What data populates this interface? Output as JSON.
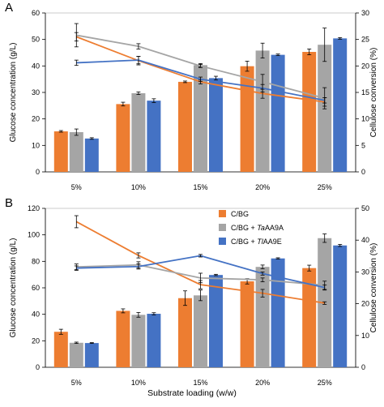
{
  "figure": {
    "x_axis_title": "Substrate loading (w/w)"
  },
  "colors": {
    "cbg": "#ED7D31",
    "taaa9a": "#A5A5A5",
    "tiaa9e": "#4472C4",
    "axis": "#000000",
    "frame": "#bfbfbf"
  },
  "legend": {
    "items": [
      {
        "prefix": "C/BG",
        "italic": "",
        "suffix": "",
        "color_key": "cbg"
      },
      {
        "prefix": "C/BG + ",
        "italic": "Ta",
        "suffix": "AA9A",
        "color_key": "taaa9a"
      },
      {
        "prefix": "C/BG + ",
        "italic": "Tl",
        "suffix": "AA9E",
        "color_key": "tiaa9e"
      }
    ]
  },
  "chart_data": [
    {
      "panel_label": "A",
      "type": "bar",
      "overlay": "line",
      "categories": [
        "5%",
        "10%",
        "15%",
        "20%",
        "25%"
      ],
      "ylabel": "Glucose concentration (g/L)",
      "y2label": "Cellulose conversion (%)",
      "ylim": [
        0,
        60
      ],
      "yticks": [
        0,
        10,
        20,
        30,
        40,
        50,
        60
      ],
      "y2lim": [
        0,
        30
      ],
      "y2ticks": [
        0,
        5,
        10,
        15,
        20,
        25,
        30
      ],
      "bar_series": [
        {
          "name": "C/BG",
          "color_key": "cbg",
          "values": [
            15.3,
            25.6,
            34.0,
            39.9,
            45.3
          ],
          "errors": [
            0.3,
            0.7,
            0.3,
            1.9,
            1.1
          ]
        },
        {
          "name": "C/BG + TaAA9A",
          "color_key": "taaa9a",
          "values": [
            15.0,
            29.7,
            40.3,
            45.8,
            48.0
          ],
          "errors": [
            1.2,
            0.5,
            0.6,
            2.8,
            6.3
          ]
        },
        {
          "name": "C/BG + TlAA9E",
          "color_key": "tiaa9e",
          "values": [
            12.6,
            26.9,
            35.4,
            44.2,
            50.4
          ],
          "errors": [
            0.3,
            0.7,
            0.7,
            0.3,
            0.3
          ]
        }
      ],
      "line_series": [
        {
          "name": "C/BG",
          "color_key": "cbg",
          "values": [
            25.5,
            21.0,
            17.0,
            14.8,
            13.2
          ],
          "errors": [
            0.8,
            0.8,
            0.4,
            0.9,
            0.8
          ]
        },
        {
          "name": "C/BG + TaAA9A",
          "color_key": "taaa9a",
          "values": [
            25.8,
            23.7,
            20.0,
            17.0,
            13.9
          ],
          "errors": [
            2.2,
            0.5,
            0.3,
            1.4,
            2.0
          ]
        },
        {
          "name": "C/BG + TlAA9E",
          "color_key": "tiaa9e",
          "values": [
            20.6,
            21.1,
            17.5,
            15.8,
            13.5
          ],
          "errors": [
            0.5,
            0.7,
            0.4,
            0.7,
            0.5
          ]
        }
      ]
    },
    {
      "panel_label": "B",
      "type": "bar",
      "overlay": "line",
      "categories": [
        "5%",
        "10%",
        "15%",
        "20%",
        "25%"
      ],
      "ylabel": "Glucose concentration (g/L)",
      "y2label": "Cellulose conversion (%)",
      "ylim": [
        0,
        120
      ],
      "yticks": [
        0,
        20,
        40,
        60,
        80,
        100,
        120
      ],
      "y2lim": [
        0,
        50
      ],
      "y2ticks": [
        0,
        10,
        20,
        30,
        40,
        50
      ],
      "bar_series": [
        {
          "name": "C/BG",
          "color_key": "cbg",
          "values": [
            26.8,
            42.6,
            52.2,
            64.9,
            74.9
          ],
          "errors": [
            1.9,
            1.5,
            5.5,
            2.0,
            2.2
          ]
        },
        {
          "name": "C/BG + TaAA9A",
          "color_key": "taaa9a",
          "values": [
            18.5,
            39.6,
            54.3,
            75.8,
            97.5
          ],
          "errors": [
            0.5,
            1.8,
            4.0,
            1.4,
            3.2
          ]
        },
        {
          "name": "C/BG + TlAA9E",
          "color_key": "tiaa9e",
          "values": [
            18.3,
            40.4,
            69.7,
            82.2,
            92.0
          ],
          "errors": [
            0.3,
            0.8,
            0.5,
            0.5,
            0.8
          ]
        }
      ],
      "line_series": [
        {
          "name": "C/BG",
          "color_key": "cbg",
          "values": [
            45.8,
            35.2,
            26.0,
            23.3,
            20.2
          ],
          "errors": [
            1.9,
            0.8,
            1.3,
            1.2,
            0.4
          ]
        },
        {
          "name": "C/BG + TaAA9A",
          "color_key": "taaa9a",
          "values": [
            31.6,
            32.2,
            28.1,
            27.5,
            25.8
          ],
          "errors": [
            0.9,
            1.0,
            1.5,
            0.6,
            1.3
          ]
        },
        {
          "name": "C/BG + TlAA9E",
          "color_key": "tiaa9e",
          "values": [
            31.2,
            31.7,
            35.1,
            29.5,
            25.1
          ],
          "errors": [
            0.7,
            0.8,
            0.4,
            0.5,
            0.8
          ]
        }
      ]
    }
  ]
}
